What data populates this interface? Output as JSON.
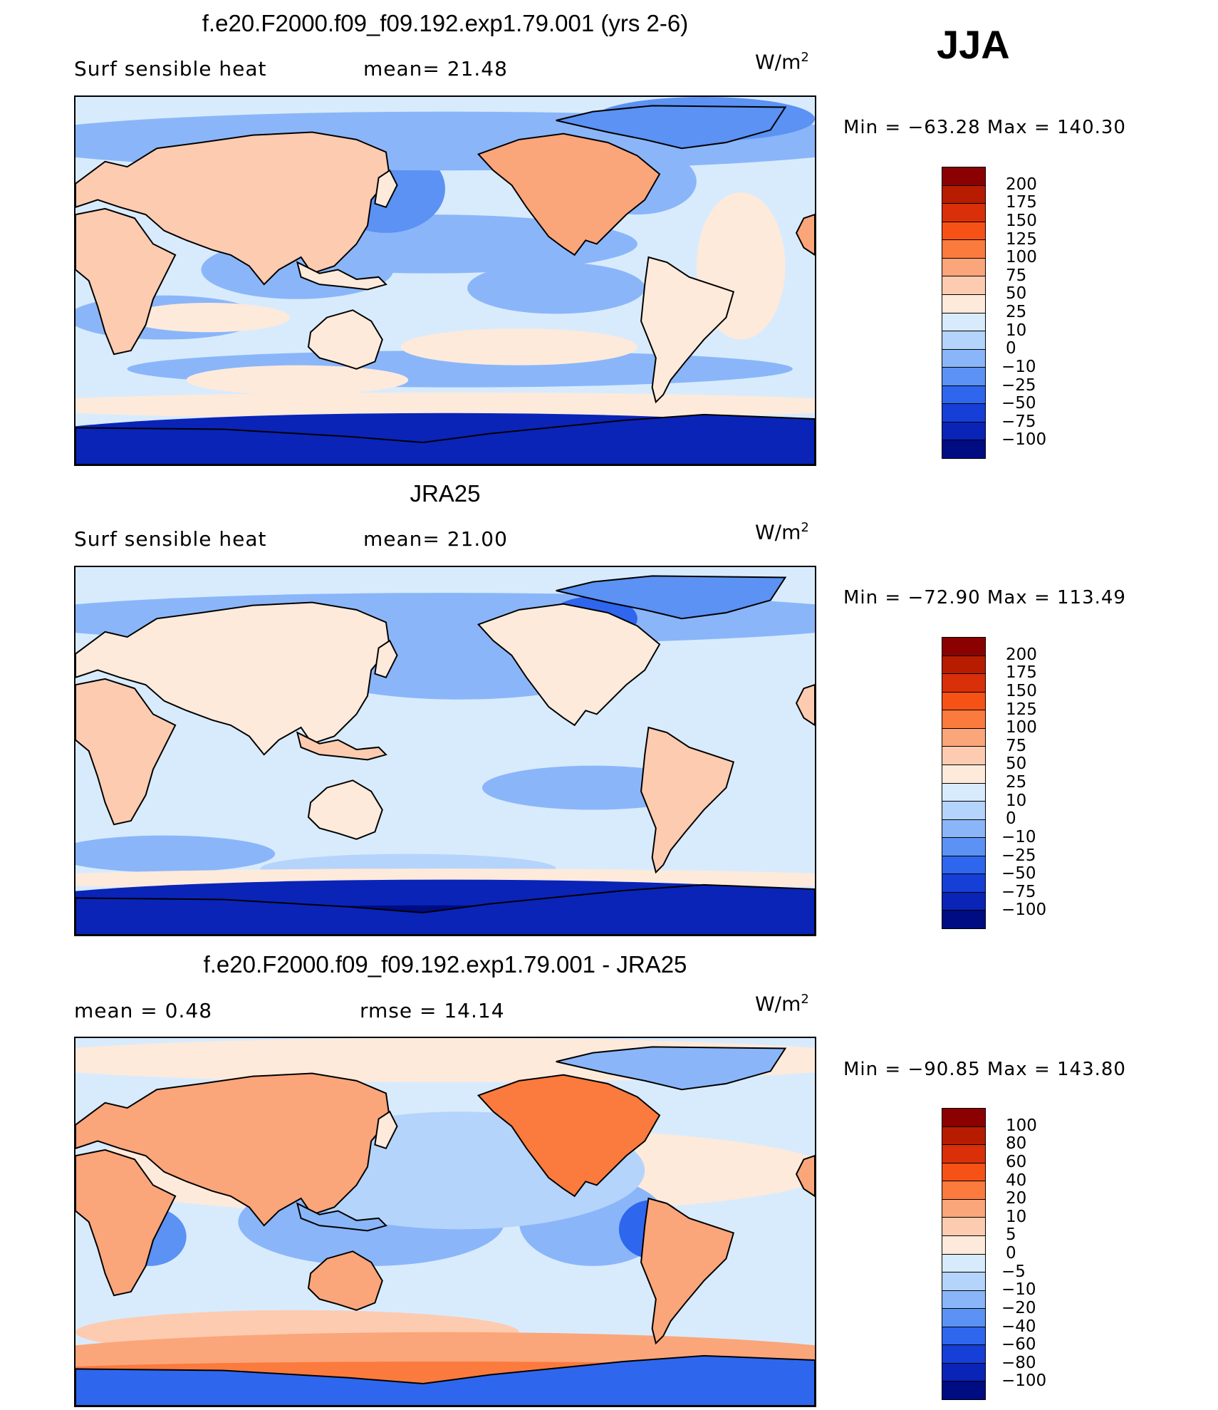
{
  "season": "JJA",
  "panels": [
    {
      "title": "f.e20.F2000.f09_f09.192.exp1.79.001 (yrs 2-6)",
      "left_text": "Surf  sensible  heat",
      "center_text": "mean=   21.48",
      "units_base": "W/m",
      "units_exp": "2",
      "minmax": "Min  =  −63.28  Max  =  140.30",
      "colorbar_labels": [
        "200",
        "175",
        "150",
        "125",
        "100",
        "75",
        "50",
        "25",
        "10",
        "0",
        "−10",
        "−25",
        "−50",
        "−75",
        "−100"
      ],
      "colors": [
        "#8b0000",
        "#b71c00",
        "#d9300a",
        "#f65216",
        "#fb7a3e",
        "#fba57a",
        "#fdcbb0",
        "#feeadb",
        "#d8ebfd",
        "#b5d4fb",
        "#8ab6f9",
        "#5b92f3",
        "#2e66ee",
        "#153fd6",
        "#0a24b8",
        "#000c82"
      ]
    },
    {
      "title": "JRA25",
      "left_text": "Surf  sensible  heat",
      "center_text": "mean=   21.00",
      "units_base": "W/m",
      "units_exp": "2",
      "minmax": "Min  =  −72.90  Max  =  113.49",
      "colorbar_labels": [
        "200",
        "175",
        "150",
        "125",
        "100",
        "75",
        "50",
        "25",
        "10",
        "0",
        "−10",
        "−25",
        "−50",
        "−75",
        "−100"
      ],
      "colors": [
        "#8b0000",
        "#b71c00",
        "#d9300a",
        "#f65216",
        "#fb7a3e",
        "#fba57a",
        "#fdcbb0",
        "#feeadb",
        "#d8ebfd",
        "#b5d4fb",
        "#8ab6f9",
        "#5b92f3",
        "#2e66ee",
        "#153fd6",
        "#0a24b8",
        "#000c82"
      ]
    },
    {
      "title": "f.e20.F2000.f09_f09.192.exp1.79.001 - JRA25",
      "left_text": "mean  =     0.48",
      "center_text": "rmse  =    14.14",
      "units_base": "W/m",
      "units_exp": "2",
      "minmax": "Min  =  −90.85  Max  =  143.80",
      "colorbar_labels": [
        "100",
        "80",
        "60",
        "40",
        "20",
        "10",
        "5",
        "0",
        "−5",
        "−10",
        "−20",
        "−40",
        "−60",
        "−80",
        "−100"
      ],
      "colors": [
        "#8b0000",
        "#b71c00",
        "#d9300a",
        "#f65216",
        "#fb7a3e",
        "#fba57a",
        "#fdcbb0",
        "#feeadb",
        "#d8ebfd",
        "#b5d4fb",
        "#8ab6f9",
        "#5b92f3",
        "#2e66ee",
        "#153fd6",
        "#0a24b8",
        "#000c82"
      ]
    }
  ]
}
